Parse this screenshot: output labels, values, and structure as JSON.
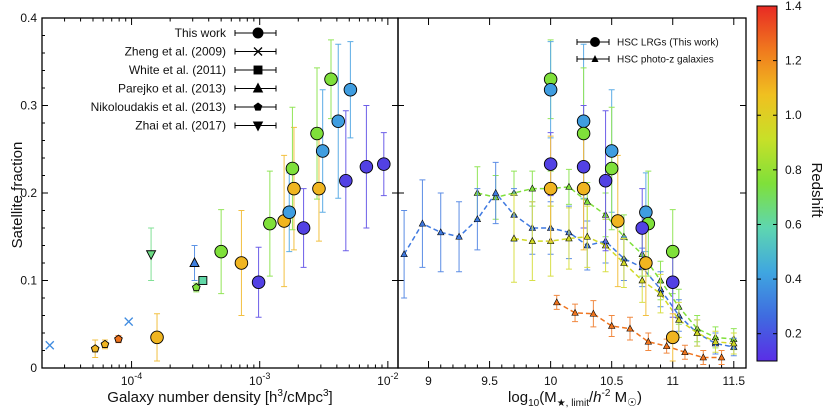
{
  "chart_data": [
    {
      "type": "scatter",
      "panel": "left",
      "xscale": "log",
      "xlim": [
        2e-05,
        0.012
      ],
      "ylim": [
        0,
        0.4
      ],
      "ylabel": "Satellite fraction",
      "xlabel_main": "Galaxy number density [h",
      "xlabel_sup1": "3",
      "xlabel_mid": "/cMpc",
      "xlabel_sup2": "3",
      "xlabel_end": "]",
      "xticks": [
        {
          "v": 0.0001,
          "base": "10",
          "exp": "-4"
        },
        {
          "v": 0.001,
          "base": "10",
          "exp": "-3"
        },
        {
          "v": 0.01,
          "base": "10",
          "exp": "-2"
        }
      ],
      "yticks": [
        "0",
        "0.1",
        "0.2",
        "0.3",
        "0.4"
      ],
      "legend": [
        {
          "label": "This work",
          "marker": "circle"
        },
        {
          "label": "Zheng et al. (2009)",
          "marker": "x"
        },
        {
          "label": "White et al. (2011)",
          "marker": "square"
        },
        {
          "label": "Parejko et al. (2013)",
          "marker": "triangle"
        },
        {
          "label": "Nikoloudakis et al. (2013)",
          "marker": "pentagon"
        },
        {
          "label": "Zhai et al. (2017)",
          "marker": "triangle-down"
        }
      ],
      "series": [
        {
          "name": "This work",
          "marker": "circle",
          "points": [
            {
              "x": 0.000158,
              "y": 0.035,
              "err": 0.027,
              "z": 1.1
            },
            {
              "x": 0.00072,
              "y": 0.12,
              "err": 0.06,
              "z": 1.1
            },
            {
              "x": 0.00185,
              "y": 0.205,
              "err": 0.07,
              "z": 1.1
            },
            {
              "x": 0.0029,
              "y": 0.205,
              "err": 0.06,
              "z": 1.1
            },
            {
              "x": 0.00155,
              "y": 0.168,
              "err": 0.075,
              "z": 1.1
            },
            {
              "x": 0.0005,
              "y": 0.133,
              "err": 0.048,
              "z": 0.75
            },
            {
              "x": 0.0012,
              "y": 0.165,
              "err": 0.06,
              "z": 0.75
            },
            {
              "x": 0.0018,
              "y": 0.228,
              "err": 0.07,
              "z": 0.75
            },
            {
              "x": 0.0028,
              "y": 0.268,
              "err": 0.075,
              "z": 0.75
            },
            {
              "x": 0.0036,
              "y": 0.33,
              "err": 0.045,
              "z": 0.75
            },
            {
              "x": 0.0017,
              "y": 0.178,
              "err": 0.045,
              "z": 0.4
            },
            {
              "x": 0.0031,
              "y": 0.248,
              "err": 0.07,
              "z": 0.4
            },
            {
              "x": 0.0041,
              "y": 0.282,
              "err": 0.088,
              "z": 0.4
            },
            {
              "x": 0.0051,
              "y": 0.318,
              "err": 0.055,
              "z": 0.4
            },
            {
              "x": 0.00098,
              "y": 0.098,
              "err": 0.04,
              "z": 0.15
            },
            {
              "x": 0.0022,
              "y": 0.16,
              "err": 0.045,
              "z": 0.15
            },
            {
              "x": 0.0047,
              "y": 0.214,
              "err": 0.08,
              "z": 0.15
            },
            {
              "x": 0.0068,
              "y": 0.23,
              "err": 0.07,
              "z": 0.15
            },
            {
              "x": 0.0093,
              "y": 0.233,
              "err": 0.036,
              "z": 0.15
            }
          ]
        },
        {
          "name": "Zheng et al. (2009)",
          "marker": "x",
          "points": [
            {
              "x": 2.3e-05,
              "y": 0.026,
              "err": 0,
              "z": 0.35
            },
            {
              "x": 9.5e-05,
              "y": 0.053,
              "err": 0,
              "z": 0.35
            }
          ]
        },
        {
          "name": "White et al. (2011)",
          "marker": "square",
          "points": [
            {
              "x": 0.00036,
              "y": 0.1,
              "err": 0,
              "z": 0.6
            }
          ]
        },
        {
          "name": "Parejko et al. (2013)",
          "marker": "triangle",
          "points": [
            {
              "x": 0.00031,
              "y": 0.12,
              "err": 0.02,
              "z": 0.32
            }
          ]
        },
        {
          "name": "Nikoloudakis et al. (2013)",
          "marker": "pentagon",
          "points": [
            {
              "x": 5.2e-05,
              "y": 0.022,
              "err": 0.01,
              "z": 1.1
            },
            {
              "x": 6.2e-05,
              "y": 0.027,
              "err": 0.005,
              "z": 1.1
            },
            {
              "x": 7.9e-05,
              "y": 0.033,
              "err": 0.004,
              "z": 1.25
            },
            {
              "x": 0.00032,
              "y": 0.092,
              "err": 0.005,
              "z": 0.75
            }
          ]
        },
        {
          "name": "Zhai et al. (2017)",
          "marker": "triangle-down",
          "points": [
            {
              "x": 0.000142,
              "y": 0.13,
              "err": 0.03,
              "z": 0.65
            }
          ]
        }
      ]
    },
    {
      "type": "line",
      "panel": "right",
      "xlim": [
        8.75,
        11.6
      ],
      "ylim": [
        0,
        0.4
      ],
      "xlabel_main": "log",
      "xlabel_sub1": "10",
      "xlabel_paren": "(M",
      "xlabel_sub2": "★, limit",
      "xlabel_slash": "/",
      "xlabel_h": "h",
      "xlabel_sup": "-2",
      "xlabel_msun": " M",
      "xlabel_sun": "☉",
      "xlabel_close": ")",
      "xticks": [
        "9",
        "9.5",
        "10",
        "10.5",
        "11",
        "11.5"
      ],
      "legend": [
        {
          "label": "HSC LRGs (This work)",
          "marker": "circle"
        },
        {
          "label": "HSC photo-z galaxies",
          "marker": "triangle"
        }
      ],
      "lrg_points": [
        {
          "x": 10.0,
          "y": 0.33,
          "err": 0.045,
          "z": 0.75
        },
        {
          "x": 10.0,
          "y": 0.318,
          "err": 0.055,
          "z": 0.4
        },
        {
          "x": 10.0,
          "y": 0.233,
          "err": 0.036,
          "z": 0.15
        },
        {
          "x": 10.0,
          "y": 0.205,
          "err": 0.06,
          "z": 1.1
        },
        {
          "x": 10.27,
          "y": 0.282,
          "err": 0.088,
          "z": 0.4
        },
        {
          "x": 10.27,
          "y": 0.268,
          "err": 0.075,
          "z": 0.75
        },
        {
          "x": 10.27,
          "y": 0.23,
          "err": 0.07,
          "z": 0.15
        },
        {
          "x": 10.27,
          "y": 0.205,
          "err": 0.07,
          "z": 1.1
        },
        {
          "x": 10.45,
          "y": 0.214,
          "err": 0.08,
          "z": 0.15
        },
        {
          "x": 10.5,
          "y": 0.248,
          "err": 0.07,
          "z": 0.4
        },
        {
          "x": 10.5,
          "y": 0.228,
          "err": 0.07,
          "z": 0.75
        },
        {
          "x": 10.55,
          "y": 0.168,
          "err": 0.075,
          "z": 1.1
        },
        {
          "x": 10.78,
          "y": 0.178,
          "err": 0.045,
          "z": 0.4
        },
        {
          "x": 10.8,
          "y": 0.165,
          "err": 0.06,
          "z": 0.75
        },
        {
          "x": 10.75,
          "y": 0.16,
          "err": 0.045,
          "z": 0.15
        },
        {
          "x": 10.78,
          "y": 0.12,
          "err": 0.06,
          "z": 1.1
        },
        {
          "x": 11.0,
          "y": 0.133,
          "err": 0.048,
          "z": 0.75
        },
        {
          "x": 11.0,
          "y": 0.098,
          "err": 0.04,
          "z": 0.15
        },
        {
          "x": 11.0,
          "y": 0.035,
          "err": 0.027,
          "z": 1.1
        }
      ],
      "photoz_series": [
        {
          "z": 0.75,
          "x": [
            9.4,
            9.55,
            9.7,
            9.85,
            10.0,
            10.15,
            10.3,
            10.45,
            10.6,
            10.75,
            10.9,
            11.05,
            11.2,
            11.35,
            11.5
          ],
          "y": [
            0.2,
            0.195,
            0.2,
            0.205,
            0.205,
            0.207,
            0.19,
            0.175,
            0.15,
            0.13,
            0.1,
            0.07,
            0.045,
            0.035,
            0.033
          ],
          "err": [
            0.03,
            0.025,
            0.025,
            0.02,
            0.02,
            0.02,
            0.022,
            0.025,
            0.025,
            0.025,
            0.022,
            0.02,
            0.015,
            0.012,
            0.012
          ]
        },
        {
          "z": 0.3,
          "x": [
            8.8,
            8.95,
            9.1,
            9.25,
            9.4,
            9.55,
            9.7,
            9.85,
            10.0,
            10.15,
            10.3,
            10.45,
            10.6,
            10.75,
            10.9,
            11.05,
            11.2,
            11.35,
            11.5
          ],
          "y": [
            0.13,
            0.165,
            0.155,
            0.15,
            0.17,
            0.2,
            0.175,
            0.16,
            0.16,
            0.155,
            0.14,
            0.145,
            0.125,
            0.115,
            0.09,
            0.06,
            0.04,
            0.028,
            0.024
          ],
          "err": [
            0.05,
            0.05,
            0.045,
            0.04,
            0.035,
            0.035,
            0.03,
            0.03,
            0.03,
            0.03,
            0.028,
            0.025,
            0.025,
            0.022,
            0.02,
            0.018,
            0.015,
            0.012,
            0.01
          ]
        },
        {
          "z": 0.95,
          "x": [
            9.7,
            9.85,
            10.0,
            10.15,
            10.3,
            10.45,
            10.6,
            10.75,
            10.9,
            11.05,
            11.2,
            11.35,
            11.5
          ],
          "y": [
            0.148,
            0.145,
            0.145,
            0.148,
            0.15,
            0.14,
            0.12,
            0.1,
            0.085,
            0.055,
            0.04,
            0.03,
            0.028
          ],
          "err": [
            0.05,
            0.045,
            0.04,
            0.035,
            0.035,
            0.03,
            0.028,
            0.025,
            0.022,
            0.02,
            0.015,
            0.012,
            0.012
          ]
        },
        {
          "z": 1.25,
          "x": [
            10.05,
            10.2,
            10.35,
            10.5,
            10.65,
            10.8,
            10.95,
            11.1,
            11.25,
            11.4
          ],
          "y": [
            0.075,
            0.063,
            0.062,
            0.048,
            0.045,
            0.03,
            0.025,
            0.018,
            0.012,
            0.012
          ],
          "err": [
            0.008,
            0.01,
            0.015,
            0.012,
            0.013,
            0.01,
            0.008,
            0.008,
            0.008,
            0.008
          ]
        }
      ]
    }
  ],
  "colorbar": {
    "label": "Redshift",
    "range": [
      0.1,
      1.4
    ],
    "ticks": [
      "0.2",
      "0.4",
      "0.6",
      "0.8",
      "1.0",
      "1.2",
      "1.4"
    ],
    "colors": [
      "#5a2ee6",
      "#3f6be0",
      "#3fa6e0",
      "#5ed6b0",
      "#7fe03a",
      "#c8e028",
      "#f0c020",
      "#f07a1e",
      "#e82a24"
    ]
  }
}
